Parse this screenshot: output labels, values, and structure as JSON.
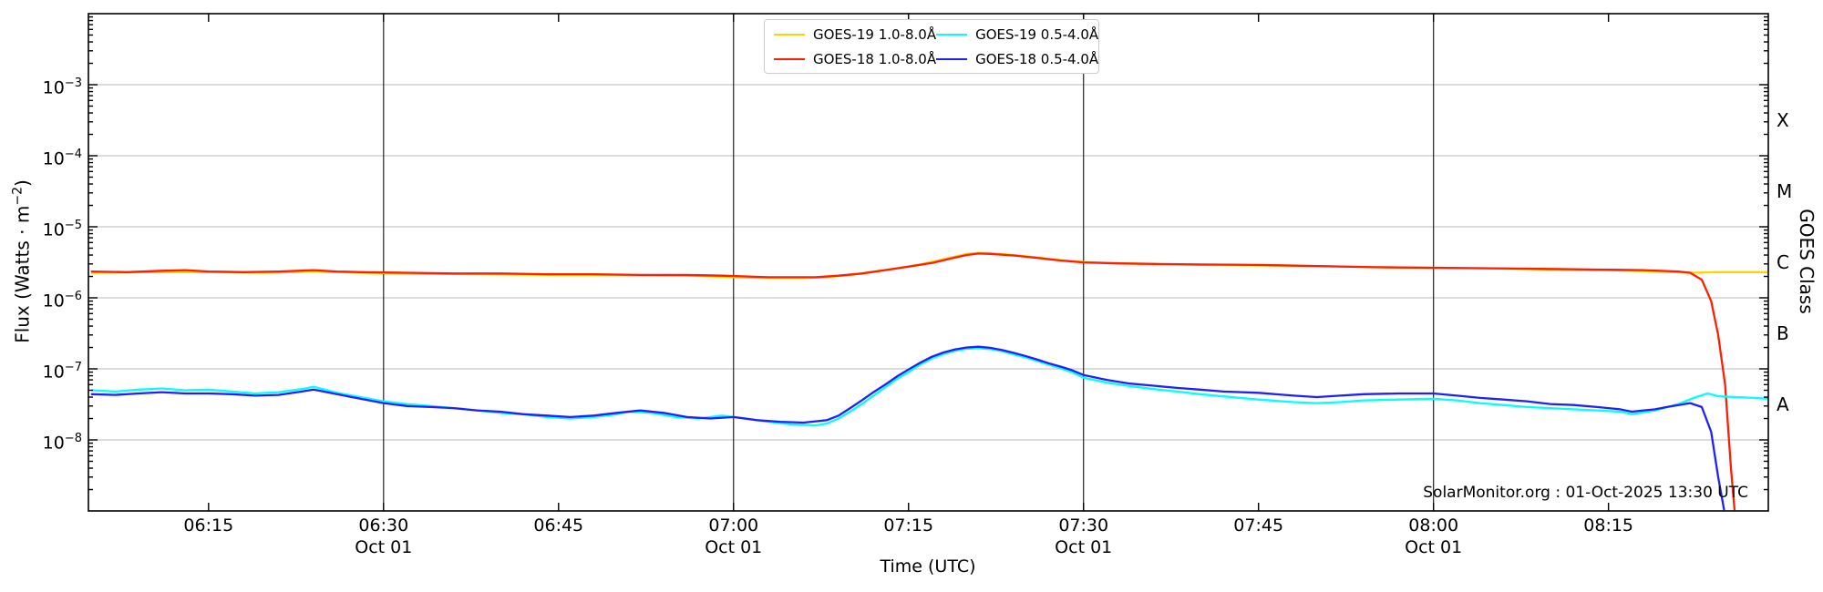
{
  "watermark": "SolarMonitor.org : 01-Oct-2025 13:30 UTC",
  "axis_labels": {
    "x": "Time (UTC)",
    "y_left_prefix": "Flux (Watts · m",
    "y_left_sup": "−2",
    "y_left_suffix": ")",
    "y_right": "GOES Class"
  },
  "chart_data": {
    "type": "line",
    "title": "",
    "xlabel": "Time (UTC)",
    "ylabel": "Flux (Watts · m^-2)",
    "ylabel_right": "GOES Class",
    "x_axis": {
      "units": "minutes after 00:00 UTC on 01-Oct-2025",
      "start_min": 364.7,
      "end_min": 508.7,
      "major_ticks": [
        {
          "min": 375,
          "label": "06:15",
          "day_gridline": false
        },
        {
          "min": 390,
          "label": "06:30",
          "day_gridline": true
        },
        {
          "min": 405,
          "label": "06:45",
          "day_gridline": false
        },
        {
          "min": 420,
          "label": "07:00",
          "day_gridline": true
        },
        {
          "min": 435,
          "label": "07:15",
          "day_gridline": false
        },
        {
          "min": 450,
          "label": "07:30",
          "day_gridline": true
        },
        {
          "min": 465,
          "label": "07:45",
          "day_gridline": false
        },
        {
          "min": 480,
          "label": "08:00",
          "day_gridline": true
        },
        {
          "min": 495,
          "label": "08:15",
          "day_gridline": false
        }
      ],
      "day_label": "Oct 01"
    },
    "y_axis": {
      "scale": "log",
      "top_exp": -2,
      "bottom_exp": -9,
      "labeled_exps": [
        -3,
        -4,
        -5,
        -6,
        -7,
        -8
      ],
      "gridline_exps": [
        -3,
        -4,
        -5,
        -6,
        -7,
        -8
      ],
      "grid_color_horizontal": "#c6c6c6",
      "grid_color_vertical": "#222222"
    },
    "right_classes": [
      {
        "label": "X",
        "mid_exp": -3.5
      },
      {
        "label": "M",
        "mid_exp": -4.5
      },
      {
        "label": "C",
        "mid_exp": -5.5
      },
      {
        "label": "B",
        "mid_exp": -6.5
      },
      {
        "label": "A",
        "mid_exp": -7.5
      }
    ],
    "legend": [
      {
        "label": "GOES-19 1.0-8.0Å",
        "color": "#ffd300"
      },
      {
        "label": "GOES-19 0.5-4.0Å",
        "color": "#00ffff"
      },
      {
        "label": "GOES-18 1.0-8.0Å",
        "color": "#ff1e00"
      },
      {
        "label": "GOES-18 0.5-4.0Å",
        "color": "#2020ff"
      }
    ],
    "series": [
      {
        "name": "GOES-19 1.0-8.0Å",
        "color": "#ffd300",
        "points": [
          [
            365,
            2.25e-06
          ],
          [
            370,
            2.3e-06
          ],
          [
            375,
            2.3e-06
          ],
          [
            380,
            2.25e-06
          ],
          [
            384,
            2.35e-06
          ],
          [
            388,
            2.25e-06
          ],
          [
            392,
            2.2e-06
          ],
          [
            398,
            2.15e-06
          ],
          [
            404,
            2.1e-06
          ],
          [
            410,
            2.1e-06
          ],
          [
            416,
            2.05e-06
          ],
          [
            420,
            1.95e-06
          ],
          [
            423,
            1.9e-06
          ],
          [
            426,
            1.9e-06
          ],
          [
            428,
            1.95e-06
          ],
          [
            430,
            2.1e-06
          ],
          [
            432,
            2.35e-06
          ],
          [
            434,
            2.6e-06
          ],
          [
            436,
            2.95e-06
          ],
          [
            438,
            3.5e-06
          ],
          [
            440,
            4.15e-06
          ],
          [
            441,
            4.3e-06
          ],
          [
            442,
            4.25e-06
          ],
          [
            444,
            4e-06
          ],
          [
            446,
            3.7e-06
          ],
          [
            448,
            3.4e-06
          ],
          [
            450,
            3.2e-06
          ],
          [
            453,
            3.05e-06
          ],
          [
            456,
            3e-06
          ],
          [
            460,
            2.9e-06
          ],
          [
            465,
            2.85e-06
          ],
          [
            470,
            2.8e-06
          ],
          [
            475,
            2.7e-06
          ],
          [
            480,
            2.65e-06
          ],
          [
            485,
            2.6e-06
          ],
          [
            490,
            2.5e-06
          ],
          [
            495,
            2.45e-06
          ],
          [
            499,
            2.35e-06
          ],
          [
            502,
            2.25e-06
          ],
          [
            504,
            2.3e-06
          ],
          [
            506,
            2.3e-06
          ],
          [
            508.7,
            2.3e-06
          ]
        ]
      },
      {
        "name": "GOES-18 1.0-8.0Å",
        "color": "#ff1e00",
        "points": [
          [
            365,
            2.35e-06
          ],
          [
            368,
            2.3e-06
          ],
          [
            371,
            2.4e-06
          ],
          [
            373,
            2.45e-06
          ],
          [
            375,
            2.35e-06
          ],
          [
            378,
            2.3e-06
          ],
          [
            381,
            2.35e-06
          ],
          [
            384,
            2.45e-06
          ],
          [
            386,
            2.35e-06
          ],
          [
            388,
            2.3e-06
          ],
          [
            392,
            2.25e-06
          ],
          [
            396,
            2.2e-06
          ],
          [
            400,
            2.2e-06
          ],
          [
            404,
            2.15e-06
          ],
          [
            408,
            2.15e-06
          ],
          [
            412,
            2.1e-06
          ],
          [
            416,
            2.1e-06
          ],
          [
            419,
            2.05e-06
          ],
          [
            421,
            2e-06
          ],
          [
            423,
            1.95e-06
          ],
          [
            425,
            1.95e-06
          ],
          [
            427,
            1.95e-06
          ],
          [
            429,
            2.05e-06
          ],
          [
            431,
            2.2e-06
          ],
          [
            433,
            2.45e-06
          ],
          [
            435,
            2.75e-06
          ],
          [
            437,
            3.1e-06
          ],
          [
            439,
            3.7e-06
          ],
          [
            440,
            4e-06
          ],
          [
            441,
            4.2e-06
          ],
          [
            442,
            4.15e-06
          ],
          [
            444,
            3.95e-06
          ],
          [
            446,
            3.65e-06
          ],
          [
            448,
            3.35e-06
          ],
          [
            450,
            3.15e-06
          ],
          [
            453,
            3.05e-06
          ],
          [
            456,
            3e-06
          ],
          [
            460,
            2.95e-06
          ],
          [
            465,
            2.9e-06
          ],
          [
            470,
            2.8e-06
          ],
          [
            475,
            2.7e-06
          ],
          [
            480,
            2.65e-06
          ],
          [
            485,
            2.6e-06
          ],
          [
            490,
            2.55e-06
          ],
          [
            494,
            2.5e-06
          ],
          [
            498,
            2.45e-06
          ],
          [
            501,
            2.35e-06
          ],
          [
            502,
            2.25e-06
          ],
          [
            503,
            1.8e-06
          ],
          [
            503.8,
            9e-07
          ],
          [
            504.4,
            3e-07
          ],
          [
            505,
            6e-08
          ],
          [
            505.5,
            4e-09
          ],
          [
            505.8,
            1.05e-09
          ]
        ]
      },
      {
        "name": "GOES-19 0.5-4.0Å",
        "color": "#00ffff",
        "points": [
          [
            365,
            5e-08
          ],
          [
            367,
            4.8e-08
          ],
          [
            369,
            5.1e-08
          ],
          [
            371,
            5.3e-08
          ],
          [
            373,
            5e-08
          ],
          [
            375,
            5.1e-08
          ],
          [
            377,
            4.8e-08
          ],
          [
            379,
            4.5e-08
          ],
          [
            381,
            4.7e-08
          ],
          [
            383,
            5.2e-08
          ],
          [
            384,
            5.6e-08
          ],
          [
            386,
            4.6e-08
          ],
          [
            388,
            4e-08
          ],
          [
            390,
            3.5e-08
          ],
          [
            392,
            3.2e-08
          ],
          [
            394,
            3e-08
          ],
          [
            396,
            2.8e-08
          ],
          [
            398,
            2.6e-08
          ],
          [
            400,
            2.4e-08
          ],
          [
            402,
            2.3e-08
          ],
          [
            404,
            2.1e-08
          ],
          [
            406,
            2e-08
          ],
          [
            408,
            2.1e-08
          ],
          [
            410,
            2.3e-08
          ],
          [
            411,
            2.5e-08
          ],
          [
            413,
            2.4e-08
          ],
          [
            415,
            2.1e-08
          ],
          [
            417,
            2e-08
          ],
          [
            419,
            2.2e-08
          ],
          [
            421,
            2e-08
          ],
          [
            423,
            1.8e-08
          ],
          [
            425,
            1.65e-08
          ],
          [
            427,
            1.6e-08
          ],
          [
            428,
            1.7e-08
          ],
          [
            429,
            2e-08
          ],
          [
            430,
            2.5e-08
          ],
          [
            431,
            3.2e-08
          ],
          [
            432,
            4.2e-08
          ],
          [
            433,
            5.5e-08
          ],
          [
            434,
            7.2e-08
          ],
          [
            435,
            9e-08
          ],
          [
            436,
            1.15e-07
          ],
          [
            437,
            1.4e-07
          ],
          [
            438,
            1.62e-07
          ],
          [
            439,
            1.8e-07
          ],
          [
            440,
            1.92e-07
          ],
          [
            441,
            1.95e-07
          ],
          [
            442,
            1.9e-07
          ],
          [
            443,
            1.78e-07
          ],
          [
            444,
            1.6e-07
          ],
          [
            445,
            1.45e-07
          ],
          [
            446,
            1.3e-07
          ],
          [
            447,
            1.15e-07
          ],
          [
            448,
            1.02e-07
          ],
          [
            449,
            9e-08
          ],
          [
            450,
            7.5e-08
          ],
          [
            452,
            6.4e-08
          ],
          [
            454,
            5.7e-08
          ],
          [
            456,
            5.2e-08
          ],
          [
            458,
            4.8e-08
          ],
          [
            460,
            4.4e-08
          ],
          [
            462,
            4.1e-08
          ],
          [
            465,
            3.7e-08
          ],
          [
            468,
            3.4e-08
          ],
          [
            470,
            3.3e-08
          ],
          [
            472,
            3.4e-08
          ],
          [
            474,
            3.6e-08
          ],
          [
            477,
            3.7e-08
          ],
          [
            480,
            3.8e-08
          ],
          [
            482,
            3.6e-08
          ],
          [
            484,
            3.3e-08
          ],
          [
            486,
            3.1e-08
          ],
          [
            488,
            2.9e-08
          ],
          [
            490,
            2.8e-08
          ],
          [
            492,
            2.7e-08
          ],
          [
            494,
            2.6e-08
          ],
          [
            496,
            2.5e-08
          ],
          [
            497,
            2.3e-08
          ],
          [
            499,
            2.6e-08
          ],
          [
            501,
            3.2e-08
          ],
          [
            502.5,
            4e-08
          ],
          [
            503.5,
            4.5e-08
          ],
          [
            504.5,
            4.1e-08
          ],
          [
            506,
            4e-08
          ],
          [
            507.5,
            3.9e-08
          ],
          [
            508.7,
            3.8e-08
          ]
        ]
      },
      {
        "name": "GOES-18 0.5-4.0Å",
        "color": "#2020ff",
        "points": [
          [
            365,
            4.4e-08
          ],
          [
            367,
            4.3e-08
          ],
          [
            369,
            4.5e-08
          ],
          [
            371,
            4.7e-08
          ],
          [
            373,
            4.5e-08
          ],
          [
            375,
            4.5e-08
          ],
          [
            377,
            4.4e-08
          ],
          [
            379,
            4.2e-08
          ],
          [
            381,
            4.3e-08
          ],
          [
            383,
            4.8e-08
          ],
          [
            384,
            5.1e-08
          ],
          [
            386,
            4.4e-08
          ],
          [
            388,
            3.8e-08
          ],
          [
            390,
            3.3e-08
          ],
          [
            392,
            3e-08
          ],
          [
            394,
            2.9e-08
          ],
          [
            396,
            2.8e-08
          ],
          [
            398,
            2.6e-08
          ],
          [
            400,
            2.5e-08
          ],
          [
            402,
            2.3e-08
          ],
          [
            404,
            2.2e-08
          ],
          [
            406,
            2.1e-08
          ],
          [
            408,
            2.2e-08
          ],
          [
            410,
            2.4e-08
          ],
          [
            412,
            2.6e-08
          ],
          [
            414,
            2.4e-08
          ],
          [
            416,
            2.1e-08
          ],
          [
            418,
            2e-08
          ],
          [
            420,
            2.1e-08
          ],
          [
            422,
            1.9e-08
          ],
          [
            424,
            1.8e-08
          ],
          [
            426,
            1.75e-08
          ],
          [
            428,
            1.9e-08
          ],
          [
            429,
            2.2e-08
          ],
          [
            430,
            2.8e-08
          ],
          [
            431,
            3.6e-08
          ],
          [
            432,
            4.7e-08
          ],
          [
            433,
            6e-08
          ],
          [
            434,
            7.8e-08
          ],
          [
            435,
            9.8e-08
          ],
          [
            436,
            1.22e-07
          ],
          [
            437,
            1.48e-07
          ],
          [
            438,
            1.7e-07
          ],
          [
            439,
            1.88e-07
          ],
          [
            440,
            2e-07
          ],
          [
            441,
            2.05e-07
          ],
          [
            442,
            1.98e-07
          ],
          [
            443,
            1.85e-07
          ],
          [
            444,
            1.68e-07
          ],
          [
            445,
            1.52e-07
          ],
          [
            446,
            1.36e-07
          ],
          [
            447,
            1.2e-07
          ],
          [
            448,
            1.08e-07
          ],
          [
            449,
            9.6e-08
          ],
          [
            450,
            8.2e-08
          ],
          [
            452,
            7e-08
          ],
          [
            454,
            6.2e-08
          ],
          [
            456,
            5.8e-08
          ],
          [
            458,
            5.4e-08
          ],
          [
            460,
            5.1e-08
          ],
          [
            462,
            4.8e-08
          ],
          [
            465,
            4.6e-08
          ],
          [
            468,
            4.2e-08
          ],
          [
            470,
            4e-08
          ],
          [
            472,
            4.2e-08
          ],
          [
            474,
            4.4e-08
          ],
          [
            477,
            4.5e-08
          ],
          [
            480,
            4.5e-08
          ],
          [
            482,
            4.2e-08
          ],
          [
            484,
            3.9e-08
          ],
          [
            486,
            3.7e-08
          ],
          [
            488,
            3.5e-08
          ],
          [
            490,
            3.2e-08
          ],
          [
            492,
            3.1e-08
          ],
          [
            494,
            2.9e-08
          ],
          [
            496,
            2.7e-08
          ],
          [
            497,
            2.5e-08
          ],
          [
            498,
            2.6e-08
          ],
          [
            499,
            2.7e-08
          ],
          [
            500,
            2.9e-08
          ],
          [
            501,
            3.1e-08
          ],
          [
            502,
            3.3e-08
          ],
          [
            503,
            2.9e-08
          ],
          [
            503.8,
            1.3e-08
          ],
          [
            504.4,
            3e-09
          ],
          [
            504.9,
            1.05e-09
          ]
        ]
      }
    ]
  }
}
